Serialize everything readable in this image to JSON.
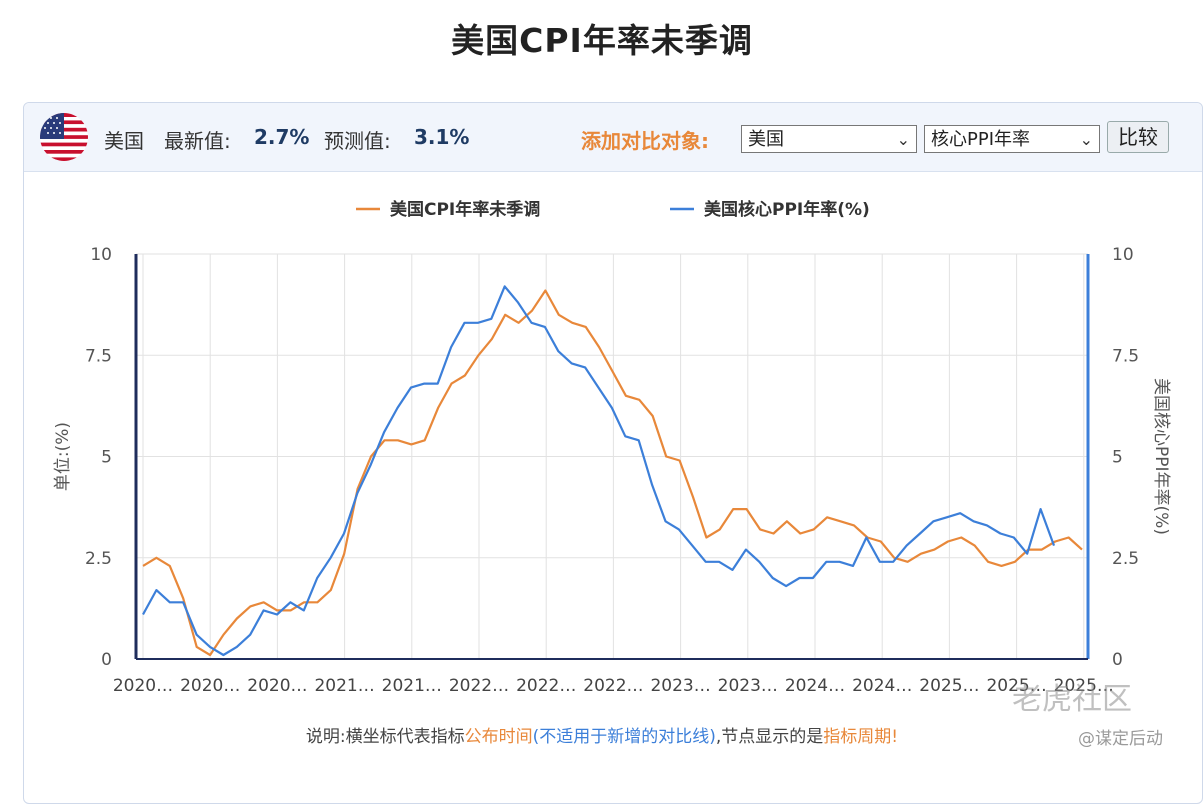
{
  "page_title": "美国CPI年率未季调",
  "header": {
    "country": "美国",
    "latest_label": "最新值:",
    "latest_value": "2.7%",
    "forecast_label": "预测值:",
    "forecast_value": "3.1%",
    "add_compare_label": "添加对比对象:",
    "select_country": "美国",
    "select_indicator": "核心PPI年率",
    "compare_button": "比较"
  },
  "note": {
    "prefix": "说明:横坐标代表指标",
    "part1": "公布时间",
    "part2": "(不适用于新增的对比线)",
    "part3": ",节点显示的是",
    "part4": "指标周期!"
  },
  "watermark": {
    "line1": "老虎社区",
    "line2": "@谋定后动"
  },
  "colors": {
    "cpi": "#e8883a",
    "ppi": "#3c7fd9",
    "accent_orange": "#e8883a",
    "left_axis": "#1f2d5c",
    "right_axis": "#3c7fd9"
  },
  "chart_data": {
    "type": "line",
    "legend_position": "top-center",
    "grid": true,
    "ylim": [
      0,
      10
    ],
    "yticks": [
      0,
      2.5,
      5,
      7.5,
      10
    ],
    "ytick_labels": [
      "0",
      "2.5",
      "5",
      "7.5",
      "10"
    ],
    "ylabel_left": "单位:(%)",
    "ylabel_right": "美国核心PPI年率(%)",
    "x_tick_labels": [
      "2020…",
      "2020…",
      "2020…",
      "2021…",
      "2021…",
      "2022…",
      "2022…",
      "2022…",
      "2023…",
      "2023…",
      "2024…",
      "2024…",
      "2025…",
      "2025…",
      "2025…"
    ],
    "series": [
      {
        "name": "美国CPI年率未季调",
        "color": "#e8883a",
        "values": [
          2.3,
          2.5,
          2.3,
          1.5,
          0.3,
          0.1,
          0.6,
          1.0,
          1.3,
          1.4,
          1.2,
          1.2,
          1.4,
          1.4,
          1.7,
          2.6,
          4.2,
          5.0,
          5.4,
          5.4,
          5.3,
          5.4,
          6.2,
          6.8,
          7.0,
          7.5,
          7.9,
          8.5,
          8.3,
          8.6,
          9.1,
          8.5,
          8.3,
          8.2,
          7.7,
          7.1,
          6.5,
          6.4,
          6.0,
          5.0,
          4.9,
          4.0,
          3.0,
          3.2,
          3.7,
          3.7,
          3.2,
          3.1,
          3.4,
          3.1,
          3.2,
          3.5,
          3.4,
          3.3,
          3.0,
          2.9,
          2.5,
          2.4,
          2.6,
          2.7,
          2.9,
          3.0,
          2.8,
          2.4,
          2.3,
          2.4,
          2.7,
          2.7,
          2.9,
          3.0,
          2.7
        ]
      },
      {
        "name": "美国核心PPI年率(%)",
        "color": "#3c7fd9",
        "values": [
          1.1,
          1.7,
          1.4,
          1.4,
          0.6,
          0.3,
          0.1,
          0.3,
          0.6,
          1.2,
          1.1,
          1.4,
          1.2,
          2.0,
          2.5,
          3.1,
          4.1,
          4.8,
          5.6,
          6.2,
          6.7,
          6.8,
          6.8,
          7.7,
          8.3,
          8.3,
          8.4,
          9.2,
          8.8,
          8.3,
          8.2,
          7.6,
          7.3,
          7.2,
          6.7,
          6.2,
          5.5,
          5.4,
          4.3,
          3.4,
          3.2,
          2.8,
          2.4,
          2.4,
          2.2,
          2.7,
          2.4,
          2.0,
          1.8,
          2.0,
          2.0,
          2.4,
          2.4,
          2.3,
          3.0,
          2.4,
          2.4,
          2.8,
          3.1,
          3.4,
          3.5,
          3.6,
          3.4,
          3.3,
          3.1,
          3.0,
          2.6,
          3.7,
          2.8
        ]
      }
    ]
  }
}
